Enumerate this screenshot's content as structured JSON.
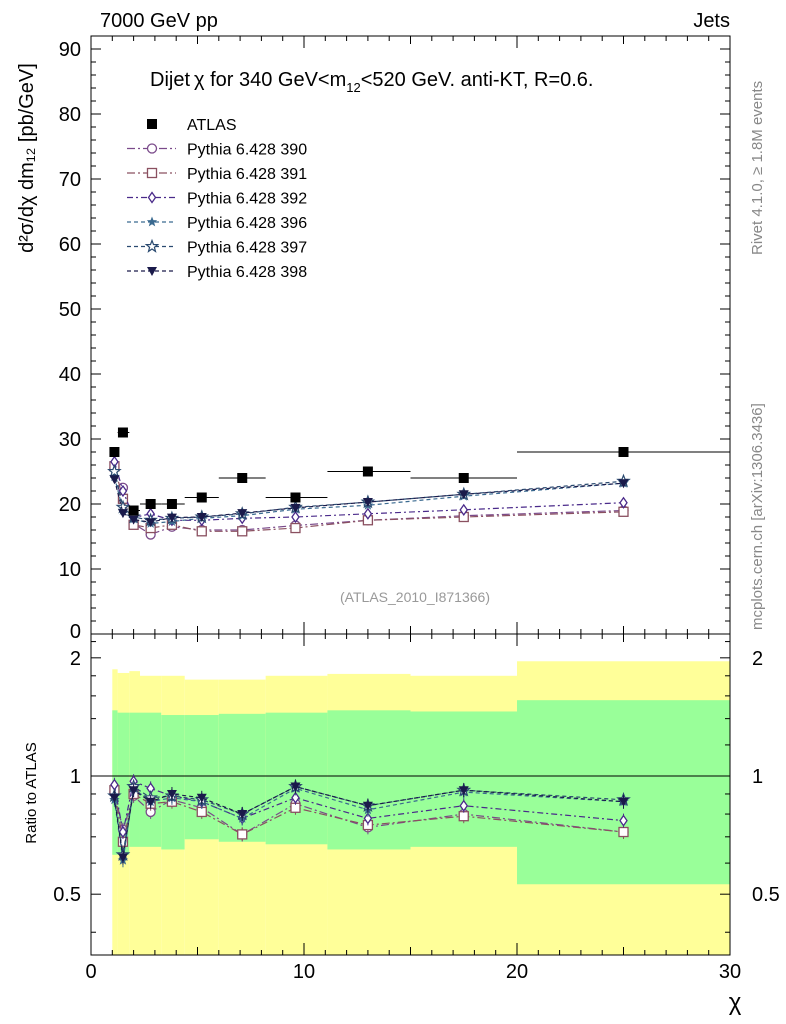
{
  "header": {
    "left": "7000 GeV pp",
    "right": "Jets"
  },
  "side": {
    "rivet": "Rivet 4.1.0, ≥ 1.8M events",
    "mcplots": "mcplots.cern.ch [arXiv:1306.3436]"
  },
  "main": {
    "title_prefix": "Dijet",
    "title_chi": "χ",
    "title_mid": " for 340 GeV<m",
    "title_sub": "12",
    "title_suffix": "<520 GeV.  anti-KT, R=0.6.",
    "ylabel": "d²σ/dχ dm₁₂ [pb/GeV]",
    "watermark": "(ATLAS_2010_I871366)"
  },
  "ratio": {
    "ylabel": "Ratio to ATLAS"
  },
  "xlabel": "χ",
  "chart_data": [
    {
      "type": "scatter",
      "panel": "main",
      "title": "Dijet χ for 340 GeV<m12<520 GeV. anti-KT, R=0.6.",
      "xlabel": "χ",
      "ylabel": "d²σ/dχ dm12 [pb/GeV]",
      "xlim": [
        0,
        30
      ],
      "ylim": [
        0,
        92
      ],
      "xticks": [
        0,
        10,
        20,
        30
      ],
      "yticks": [
        10,
        20,
        30,
        40,
        50,
        60,
        70,
        80,
        90
      ],
      "legend_position": "top-left",
      "x": [
        1.1,
        1.5,
        2.0,
        2.8,
        3.8,
        5.2,
        7.1,
        9.6,
        13.0,
        17.5,
        25.0
      ],
      "xerr": [
        [
          1.0,
          1.25
        ],
        [
          1.25,
          1.8
        ],
        [
          1.8,
          2.3
        ],
        [
          2.3,
          3.3
        ],
        [
          3.3,
          4.4
        ],
        [
          4.4,
          6.0
        ],
        [
          6.0,
          8.2
        ],
        [
          8.2,
          11.1
        ],
        [
          11.1,
          15.0
        ],
        [
          15.0,
          20.0
        ],
        [
          20.0,
          30.0
        ]
      ],
      "series": [
        {
          "name": "ATLAS",
          "marker": "filled-square",
          "color": "#000000",
          "values": [
            28.0,
            31.0,
            19.0,
            20.0,
            20.0,
            21.0,
            24.0,
            21.0,
            25.0,
            24.0,
            28.0
          ]
        },
        {
          "name": "Pythia 6.428 390",
          "marker": "open-circle",
          "color": "#7a4a8a",
          "dash": "8,3,2,3",
          "values": [
            25.5,
            22.5,
            17.0,
            15.3,
            16.5,
            16.0,
            16.0,
            16.7,
            17.5,
            18.2,
            19.0
          ]
        },
        {
          "name": "Pythia 6.428 391",
          "marker": "open-square",
          "color": "#8a5060",
          "dash": "8,3,2,3",
          "values": [
            25.8,
            20.8,
            16.8,
            16.3,
            16.8,
            15.8,
            15.8,
            16.3,
            17.5,
            18.0,
            18.8
          ]
        },
        {
          "name": "Pythia 6.428 392",
          "marker": "open-diamond",
          "color": "#4a2a8a",
          "dash": "6,3,2,3",
          "values": [
            26.5,
            22.0,
            17.9,
            18.5,
            17.5,
            17.5,
            17.8,
            18.0,
            18.5,
            19.1,
            20.2
          ]
        },
        {
          "name": "Pythia 6.428 396",
          "marker": "filled-star",
          "color": "#3a6a90",
          "dash": "4,3",
          "values": [
            24.2,
            19.0,
            17.7,
            17.0,
            17.3,
            17.8,
            18.2,
            19.2,
            19.8,
            21.2,
            23.2
          ]
        },
        {
          "name": "Pythia 6.428 397",
          "marker": "open-star",
          "color": "#2a4a70",
          "dash": "4,3",
          "values": [
            25.0,
            19.5,
            18.0,
            17.5,
            17.8,
            18.0,
            18.5,
            19.5,
            20.3,
            21.5,
            23.5
          ]
        },
        {
          "name": "Pythia 6.428 398",
          "marker": "filled-triangle-down",
          "color": "#1a1a4a",
          "dash": "4,3",
          "values": [
            23.8,
            18.6,
            17.6,
            17.2,
            17.9,
            18.0,
            18.6,
            19.4,
            20.3,
            21.5,
            23.2
          ]
        }
      ]
    },
    {
      "type": "line",
      "panel": "ratio",
      "ylabel": "Ratio to ATLAS",
      "xlim": [
        0,
        30
      ],
      "ylim": [
        0.35,
        2.3
      ],
      "yscale": "log",
      "xticks": [
        0,
        10,
        20,
        30
      ],
      "yticks": [
        0.5,
        1,
        2
      ],
      "reference_line": 1,
      "bands": {
        "edges": [
          1.0,
          1.25,
          1.8,
          2.3,
          3.3,
          4.4,
          6.0,
          8.2,
          11.1,
          15.0,
          20.0,
          30.0
        ],
        "outer_color": "#ffff99",
        "inner_color": "#99ff99",
        "outer_low": [
          0.35,
          0.35,
          0.35,
          0.35,
          0.35,
          0.35,
          0.35,
          0.35,
          0.35,
          0.35,
          0.35
        ],
        "outer_high": [
          1.87,
          1.83,
          1.85,
          1.8,
          1.8,
          1.76,
          1.76,
          1.8,
          1.82,
          1.8,
          1.96
        ],
        "inner_low": [
          0.63,
          0.63,
          0.66,
          0.66,
          0.65,
          0.69,
          0.68,
          0.67,
          0.65,
          0.66,
          0.53
        ],
        "inner_high": [
          1.47,
          1.45,
          1.45,
          1.45,
          1.43,
          1.43,
          1.44,
          1.45,
          1.47,
          1.46,
          1.56
        ]
      },
      "x": [
        1.1,
        1.5,
        2.0,
        2.8,
        3.8,
        5.2,
        7.1,
        9.6,
        13.0,
        17.5,
        25.0
      ],
      "series": [
        {
          "name": "Pythia 6.428 390",
          "values": [
            0.91,
            0.73,
            0.89,
            0.81,
            0.87,
            0.83,
            0.71,
            0.85,
            0.74,
            0.8,
            0.72
          ]
        },
        {
          "name": "Pythia 6.428 391",
          "values": [
            0.92,
            0.68,
            0.9,
            0.85,
            0.86,
            0.81,
            0.71,
            0.83,
            0.75,
            0.79,
            0.72
          ]
        },
        {
          "name": "Pythia 6.428 392",
          "values": [
            0.95,
            0.72,
            0.97,
            0.93,
            0.89,
            0.86,
            0.78,
            0.88,
            0.78,
            0.84,
            0.77
          ]
        },
        {
          "name": "Pythia 6.428 396",
          "values": [
            0.87,
            0.61,
            0.93,
            0.86,
            0.88,
            0.86,
            0.78,
            0.93,
            0.82,
            0.91,
            0.86
          ]
        },
        {
          "name": "Pythia 6.428 397",
          "values": [
            0.89,
            0.63,
            0.94,
            0.88,
            0.89,
            0.87,
            0.8,
            0.94,
            0.84,
            0.92,
            0.87
          ]
        },
        {
          "name": "Pythia 6.428 398",
          "values": [
            0.88,
            0.62,
            0.92,
            0.86,
            0.9,
            0.88,
            0.8,
            0.94,
            0.84,
            0.92,
            0.86
          ]
        }
      ]
    }
  ]
}
